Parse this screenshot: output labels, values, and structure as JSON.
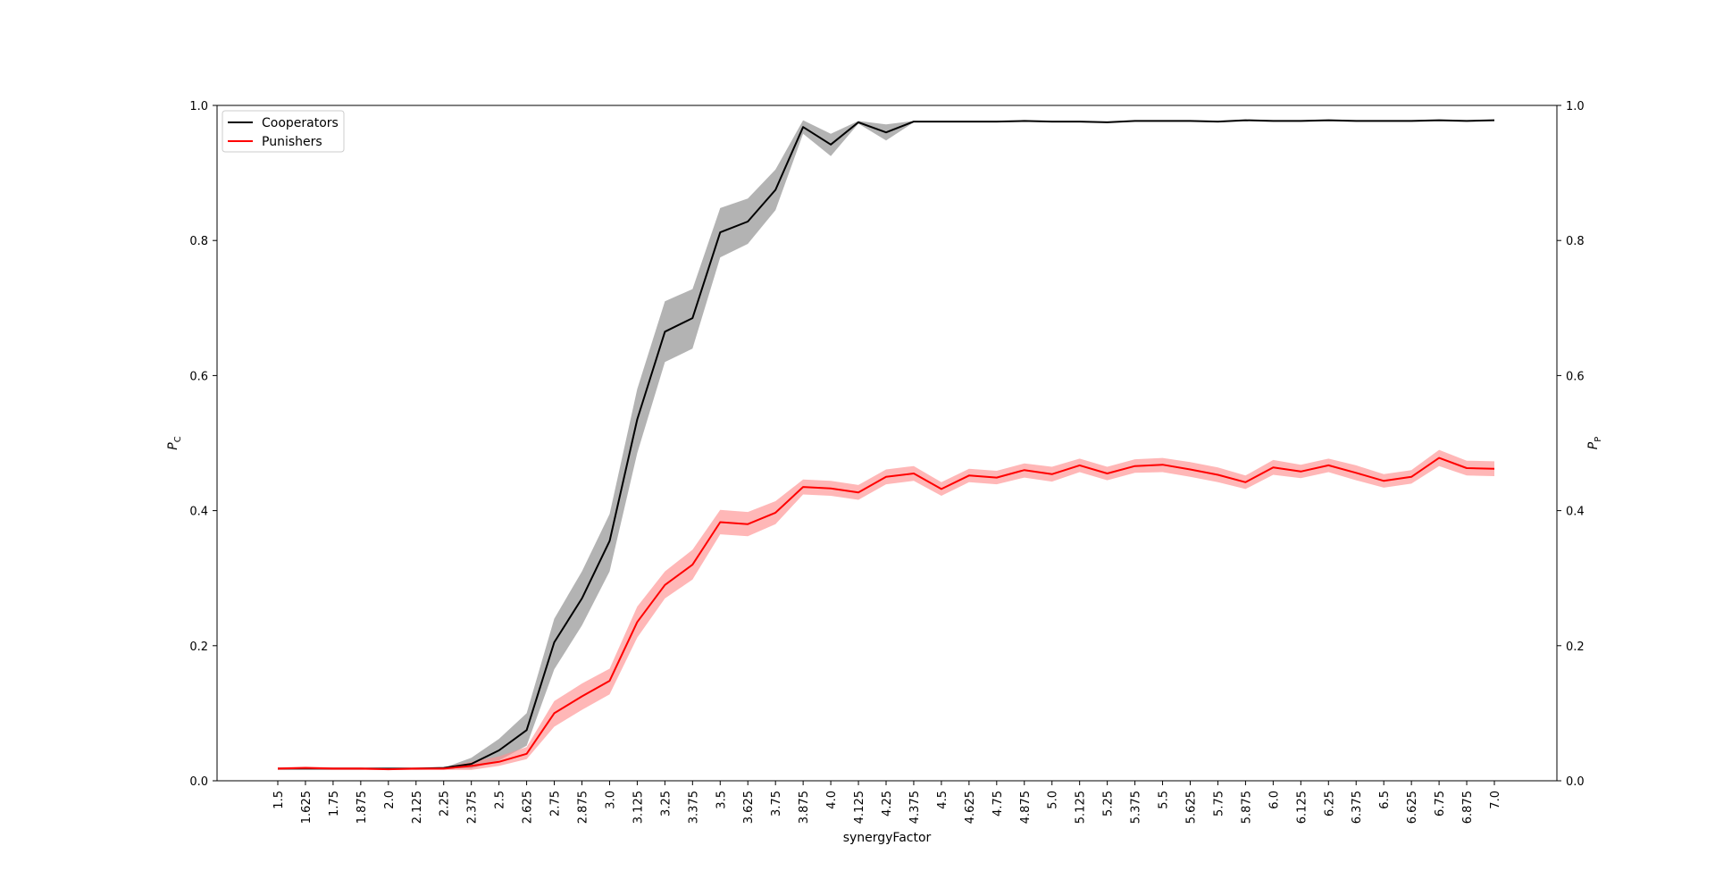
{
  "chart_data": {
    "type": "line",
    "xlabel": "synergyFactor",
    "ylabel_left": "P",
    "ylabel_left_sub": "C",
    "ylabel_right": "P",
    "ylabel_right_sub": "P",
    "ylim": [
      0,
      1
    ],
    "yticks": [
      "0.0",
      "0.2",
      "0.4",
      "0.6",
      "0.8",
      "1.0"
    ],
    "ytick_values": [
      0,
      0.2,
      0.4,
      0.6,
      0.8,
      1.0
    ],
    "x": [
      "1.5",
      "1.625",
      "1.75",
      "1.875",
      "2.0",
      "2.125",
      "2.25",
      "2.375",
      "2.5",
      "2.625",
      "2.75",
      "2.875",
      "3.0",
      "3.125",
      "3.25",
      "3.375",
      "3.5",
      "3.625",
      "3.75",
      "3.875",
      "4.0",
      "4.125",
      "4.25",
      "4.375",
      "4.5",
      "4.625",
      "4.75",
      "4.875",
      "5.0",
      "5.125",
      "5.25",
      "5.375",
      "5.5",
      "5.625",
      "5.75",
      "5.875",
      "6.0",
      "6.125",
      "6.25",
      "6.375",
      "6.5",
      "6.625",
      "6.75",
      "6.875",
      "7.0"
    ],
    "legend_position": "top-left",
    "grid": false,
    "series": [
      {
        "name": "Cooperators",
        "color": "#000000",
        "band_color": "#808080",
        "values": [
          0.018,
          0.018,
          0.018,
          0.018,
          0.018,
          0.018,
          0.019,
          0.025,
          0.045,
          0.075,
          0.205,
          0.27,
          0.355,
          0.535,
          0.665,
          0.685,
          0.812,
          0.828,
          0.875,
          0.968,
          0.942,
          0.975,
          0.96,
          0.976,
          0.976,
          0.976,
          0.976,
          0.977,
          0.976,
          0.976,
          0.975,
          0.977,
          0.977,
          0.977,
          0.976,
          0.978,
          0.977,
          0.977,
          0.978,
          0.977,
          0.977,
          0.977,
          0.978,
          0.977,
          0.978
        ],
        "lower": [
          0.018,
          0.018,
          0.018,
          0.018,
          0.018,
          0.018,
          0.019,
          0.018,
          0.03,
          0.052,
          0.165,
          0.23,
          0.31,
          0.485,
          0.62,
          0.64,
          0.775,
          0.795,
          0.845,
          0.958,
          0.925,
          0.973,
          0.948,
          0.975,
          0.976,
          0.976,
          0.976,
          0.977,
          0.976,
          0.976,
          0.975,
          0.977,
          0.977,
          0.977,
          0.976,
          0.978,
          0.977,
          0.977,
          0.978,
          0.977,
          0.977,
          0.977,
          0.978,
          0.977,
          0.978
        ],
        "upper": [
          0.018,
          0.018,
          0.018,
          0.018,
          0.018,
          0.018,
          0.019,
          0.034,
          0.062,
          0.1,
          0.24,
          0.31,
          0.395,
          0.58,
          0.71,
          0.728,
          0.848,
          0.862,
          0.905,
          0.978,
          0.958,
          0.977,
          0.972,
          0.977,
          0.976,
          0.976,
          0.976,
          0.977,
          0.976,
          0.976,
          0.975,
          0.977,
          0.977,
          0.977,
          0.976,
          0.978,
          0.977,
          0.977,
          0.978,
          0.977,
          0.977,
          0.977,
          0.978,
          0.977,
          0.978
        ]
      },
      {
        "name": "Punishers",
        "color": "#ff0000",
        "band_color": "#ff9090",
        "values": [
          0.018,
          0.019,
          0.018,
          0.018,
          0.017,
          0.018,
          0.018,
          0.022,
          0.028,
          0.04,
          0.1,
          0.125,
          0.148,
          0.235,
          0.29,
          0.32,
          0.383,
          0.38,
          0.397,
          0.435,
          0.433,
          0.427,
          0.45,
          0.455,
          0.432,
          0.452,
          0.449,
          0.46,
          0.454,
          0.467,
          0.455,
          0.466,
          0.468,
          0.461,
          0.453,
          0.442,
          0.464,
          0.458,
          0.467,
          0.456,
          0.444,
          0.45,
          0.478,
          0.463,
          0.462
        ],
        "lower": [
          0.016,
          0.017,
          0.016,
          0.016,
          0.016,
          0.016,
          0.016,
          0.016,
          0.022,
          0.032,
          0.08,
          0.105,
          0.128,
          0.212,
          0.27,
          0.298,
          0.365,
          0.362,
          0.38,
          0.424,
          0.422,
          0.416,
          0.439,
          0.444,
          0.422,
          0.442,
          0.439,
          0.449,
          0.443,
          0.457,
          0.445,
          0.456,
          0.457,
          0.45,
          0.442,
          0.432,
          0.453,
          0.448,
          0.457,
          0.445,
          0.434,
          0.44,
          0.466,
          0.452,
          0.451
        ],
        "upper": [
          0.02,
          0.021,
          0.02,
          0.02,
          0.019,
          0.02,
          0.02,
          0.028,
          0.036,
          0.05,
          0.118,
          0.144,
          0.166,
          0.258,
          0.31,
          0.342,
          0.401,
          0.398,
          0.414,
          0.446,
          0.444,
          0.438,
          0.461,
          0.466,
          0.442,
          0.462,
          0.459,
          0.47,
          0.465,
          0.477,
          0.465,
          0.476,
          0.478,
          0.472,
          0.464,
          0.452,
          0.475,
          0.468,
          0.477,
          0.467,
          0.454,
          0.46,
          0.49,
          0.474,
          0.473
        ]
      }
    ]
  }
}
